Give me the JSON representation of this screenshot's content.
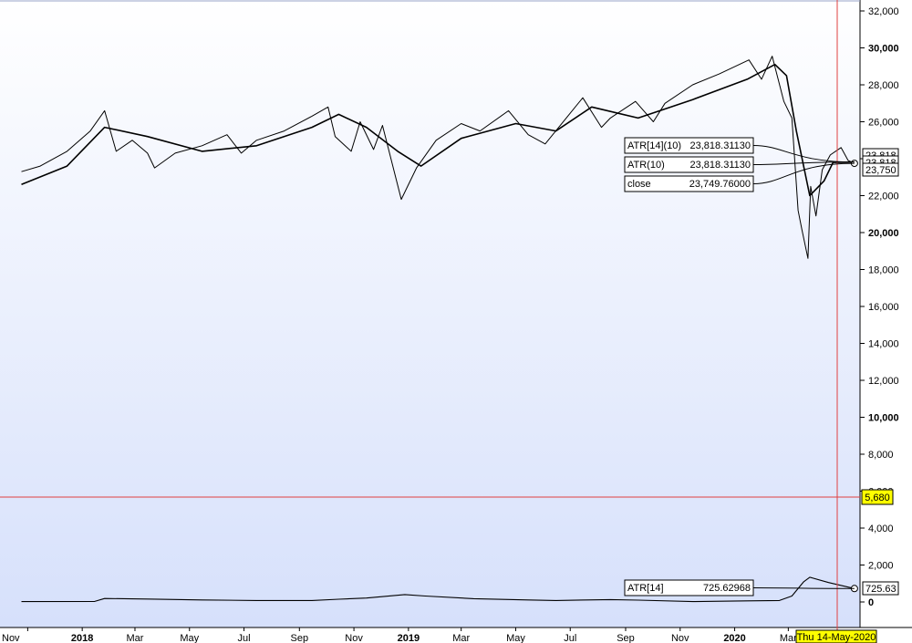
{
  "chart_data": {
    "type": "line",
    "title": "",
    "y_axis": {
      "range": [
        0,
        32000
      ],
      "ticks": [
        "32,000",
        "30,000",
        "28,000",
        "26,000",
        "24,000",
        "22,000",
        "20,000",
        "18,000",
        "16,000",
        "14,000",
        "12,000",
        "10,000",
        "8,000",
        "6,000",
        "4,000",
        "2,000",
        "0"
      ],
      "major_ticks": [
        "30,000",
        "20,000",
        "10,000",
        "0"
      ]
    },
    "x_axis": {
      "ticks": [
        "Nov",
        "2018",
        "Mar",
        "May",
        "Jul",
        "Sep",
        "Nov",
        "2019",
        "Mar",
        "May",
        "Jul",
        "Sep",
        "Nov",
        "2020",
        "Mar"
      ],
      "year_ticks": [
        "2018",
        "2019",
        "2020"
      ]
    },
    "series": [
      {
        "name": "close",
        "x": [
          "2017-10-25",
          "2017-11-15",
          "2017-12-15",
          "2018-01-10",
          "2018-01-26",
          "2018-02-08",
          "2018-02-26",
          "2018-03-15",
          "2018-03-23",
          "2018-04-15",
          "2018-05-15",
          "2018-06-12",
          "2018-06-28",
          "2018-07-15",
          "2018-08-15",
          "2018-09-15",
          "2018-10-03",
          "2018-10-11",
          "2018-10-29",
          "2018-11-08",
          "2018-11-23",
          "2018-12-03",
          "2018-12-24",
          "2019-01-10",
          "2019-02-01",
          "2019-03-01",
          "2019-03-22",
          "2019-04-23",
          "2019-05-15",
          "2019-06-03",
          "2019-07-15",
          "2019-08-05",
          "2019-08-15",
          "2019-09-12",
          "2019-10-02",
          "2019-10-15",
          "2019-11-15",
          "2019-12-15",
          "2020-01-17",
          "2020-01-31",
          "2020-02-12",
          "2020-02-25",
          "2020-03-05",
          "2020-03-12",
          "2020-03-16",
          "2020-03-23",
          "2020-03-26",
          "2020-04-01",
          "2020-04-08",
          "2020-04-17",
          "2020-04-29",
          "2020-05-07",
          "2020-05-14"
        ],
        "values": [
          23300,
          23600,
          24400,
          25500,
          26600,
          24400,
          25000,
          24300,
          23500,
          24300,
          24700,
          25300,
          24300,
          25000,
          25500,
          26300,
          26800,
          25200,
          24400,
          26000,
          24500,
          25800,
          21800,
          23500,
          25000,
          25900,
          25500,
          26600,
          25300,
          24800,
          27300,
          25700,
          26200,
          27100,
          26000,
          27000,
          28000,
          28600,
          29350,
          28300,
          29550,
          27100,
          26200,
          21200,
          20200,
          18600,
          22500,
          20900,
          23400,
          24200,
          24600,
          23900,
          23750
        ]
      },
      {
        "name": "ATR[14](10)",
        "x": [
          "2017-10-25",
          "2017-12-15",
          "2018-01-26",
          "2018-03-15",
          "2018-05-15",
          "2018-07-15",
          "2018-09-15",
          "2018-10-15",
          "2018-11-15",
          "2018-12-20",
          "2019-01-15",
          "2019-03-01",
          "2019-05-01",
          "2019-06-15",
          "2019-07-25",
          "2019-09-15",
          "2019-11-15",
          "2020-01-15",
          "2020-02-15",
          "2020-02-28",
          "2020-03-10",
          "2020-03-25",
          "2020-04-10",
          "2020-04-20",
          "2020-05-14"
        ],
        "values": [
          22600,
          23600,
          25700,
          25200,
          24400,
          24700,
          25700,
          26400,
          25700,
          24400,
          23600,
          25100,
          25900,
          25500,
          26800,
          26200,
          27200,
          28300,
          29100,
          28500,
          25500,
          22000,
          22800,
          23800,
          23818.3113
        ]
      },
      {
        "name": "ATR[14]",
        "x": [
          "2017-10-25",
          "2018-01-15",
          "2018-01-26",
          "2018-03-15",
          "2018-05-15",
          "2018-07-15",
          "2018-09-15",
          "2018-10-15",
          "2018-11-15",
          "2018-12-15",
          "2018-12-28",
          "2019-01-20",
          "2019-03-15",
          "2019-05-15",
          "2019-06-15",
          "2019-08-15",
          "2019-09-15",
          "2019-11-15",
          "2020-01-15",
          "2020-02-20",
          "2020-03-05",
          "2020-03-18",
          "2020-03-25",
          "2020-04-15",
          "2020-05-14"
        ],
        "values": [
          20,
          30,
          190,
          160,
          110,
          80,
          80,
          150,
          210,
          340,
          400,
          320,
          180,
          110,
          80,
          130,
          100,
          20,
          60,
          80,
          320,
          1080,
          1340,
          1050,
          725.62968
        ]
      }
    ],
    "annotations": [
      {
        "label": "ATR[14](10)",
        "value": "23,818.31130"
      },
      {
        "label": "ATR(10)",
        "value": "23,818.31130"
      },
      {
        "label": "close",
        "value": "23,749.76000"
      },
      {
        "label": "ATR[14]",
        "value": "725.62968"
      }
    ],
    "axis_values": [
      "23,818",
      "23,818",
      "23,750",
      "725.63"
    ],
    "crosshair": {
      "y_value": "5,680",
      "date_label": "Thu 14-May-2020"
    },
    "grid": false,
    "colors": {
      "line": "#000000",
      "crosshair": "#e04040",
      "highlight": "#ffff00",
      "bg_top": "#ffffff",
      "bg_bottom": "#d6e0fb"
    }
  }
}
